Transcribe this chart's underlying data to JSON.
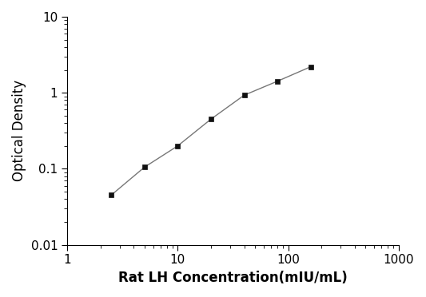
{
  "x_values": [
    2.5,
    5,
    10,
    20,
    40,
    80,
    160
  ],
  "y_values": [
    0.045,
    0.105,
    0.2,
    0.45,
    0.93,
    1.42,
    2.2
  ],
  "xlabel": "Rat LH Concentration(mIU/mL)",
  "ylabel": "Optical Density",
  "xlim": [
    1,
    1000
  ],
  "ylim": [
    0.01,
    10
  ],
  "line_color": "#777777",
  "marker_color": "#111111",
  "marker": "s",
  "marker_size": 5,
  "line_width": 1.0,
  "background_color": "#ffffff",
  "xlabel_fontsize": 12,
  "ylabel_fontsize": 12,
  "tick_fontsize": 11,
  "ytick_labels": [
    "0.01",
    "0.1",
    "1",
    "10"
  ],
  "ytick_values": [
    0.01,
    0.1,
    1,
    10
  ],
  "xtick_labels": [
    "1",
    "10",
    "100",
    "1000"
  ],
  "xtick_values": [
    1,
    10,
    100,
    1000
  ]
}
